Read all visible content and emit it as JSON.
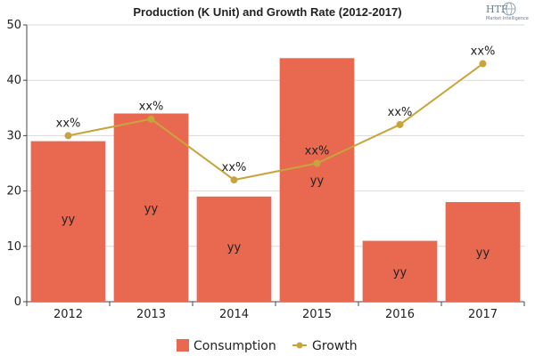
{
  "chart_data": {
    "type": "bar",
    "title": "Production (K Unit) and Growth Rate (2012-2017)",
    "categories": [
      "2012",
      "2013",
      "2014",
      "2015",
      "2016",
      "2017"
    ],
    "ylim": [
      0,
      50
    ],
    "yticks": [
      0,
      10,
      20,
      30,
      40,
      50
    ],
    "series": [
      {
        "name": "Consumption",
        "kind": "bar",
        "color": "#e8694f",
        "values": [
          29,
          34,
          19,
          44,
          11,
          18
        ],
        "label_positions": [
          15,
          17,
          10,
          22,
          5.5,
          9
        ],
        "labels": [
          "yy",
          "yy",
          "yy",
          "yy",
          "yy",
          "yy"
        ]
      },
      {
        "name": "Growth",
        "kind": "line",
        "color": "#c8a43c",
        "values": [
          30,
          33,
          22,
          25,
          32,
          43
        ],
        "labels": [
          "xx%",
          "xx%",
          "xx%",
          "xx%",
          "xx%",
          "xx%"
        ]
      }
    ],
    "grid": "horizontal",
    "legend": "bottom-center"
  },
  "logo": {
    "text": "HTF",
    "subtitle": "Market Intelligence"
  }
}
